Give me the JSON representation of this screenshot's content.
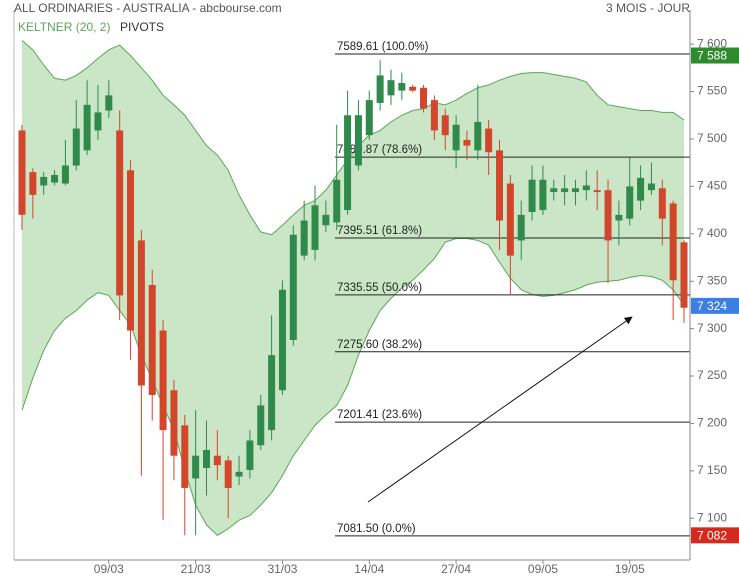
{
  "chart_data": {
    "type": "candlestick",
    "title": "ALL ORDINARIES - AUSTRALIA - abcbourse.com",
    "subtitle": "3 MOIS - JOUR",
    "categories": [
      null,
      null,
      null,
      null,
      null,
      null,
      null,
      null,
      "09/03",
      null,
      null,
      null,
      null,
      null,
      null,
      null,
      "21/03",
      null,
      null,
      null,
      null,
      null,
      null,
      null,
      "31/03",
      null,
      null,
      null,
      null,
      null,
      null,
      null,
      "14/04",
      null,
      null,
      null,
      null,
      null,
      null,
      null,
      "27/04",
      null,
      null,
      null,
      null,
      null,
      null,
      null,
      "09/05",
      null,
      null,
      null,
      null,
      null,
      null,
      null,
      "19/05",
      null,
      null,
      null,
      null,
      null
    ],
    "open": [
      7509,
      7465,
      7451,
      7454,
      7453,
      7472,
      7488,
      7509,
      7530,
      7509,
      7467,
      7393,
      7346,
      7298,
      7235,
      7198,
      7142,
      7153,
      7166,
      7161,
      7144,
      7151,
      7177,
      7193,
      7235,
      7288,
      7377,
      7383,
      7409,
      7412,
      7425,
      7472,
      7504,
      7538,
      7546,
      7551,
      7555,
      7554,
      7541,
      7525,
      7488,
      7499,
      7488,
      7511,
      7488,
      7453,
      7393,
      7423,
      7425,
      7444,
      7444,
      7444,
      7446,
      7446,
      7446,
      7414,
      7416,
      7435,
      7446,
      7448,
      7432,
      7391
    ],
    "high": [
      7515,
      7469,
      7465,
      7467,
      7499,
      7541,
      7562,
      7557,
      7562,
      7530,
      7478,
      7404,
      7362,
      7309,
      7246,
      7209,
      7214,
      7203,
      7193,
      7166,
      7166,
      7193,
      7230,
      7314,
      7351,
      7409,
      7435,
      7451,
      7435,
      7515,
      7551,
      7541,
      7551,
      7583,
      7573,
      7570,
      7557,
      7557,
      7546,
      7532,
      7525,
      7509,
      7557,
      7520,
      7499,
      7462,
      7435,
      7472,
      7472,
      7457,
      7462,
      7457,
      7467,
      7467,
      7457,
      7435,
      7480,
      7472,
      7475,
      7457,
      7435,
      7393
    ],
    "low": [
      7404,
      7416,
      7441,
      7451,
      7451,
      7467,
      7483,
      7499,
      7522,
      7309,
      7267,
      7145,
      7203,
      7098,
      7140,
      7082,
      7082,
      7124,
      7140,
      7100,
      7135,
      7142,
      7172,
      7182,
      7230,
      7282,
      7372,
      7372,
      7402,
      7404,
      7420,
      7467,
      7499,
      7530,
      7536,
      7541,
      7549,
      7528,
      7499,
      7488,
      7469,
      7478,
      7478,
      7462,
      7383,
      7335,
      7372,
      7414,
      7420,
      7435,
      7430,
      7430,
      7435,
      7425,
      7348,
      7388,
      7409,
      7425,
      7441,
      7388,
      7309,
      7306
    ],
    "close": [
      7420,
      7441,
      7460,
      7462,
      7472,
      7511,
      7536,
      7528,
      7546,
      7335,
      7298,
      7240,
      7230,
      7193,
      7166,
      7132,
      7166,
      7172,
      7156,
      7132,
      7149,
      7182,
      7219,
      7272,
      7341,
      7399,
      7414,
      7430,
      7420,
      7457,
      7525,
      7525,
      7541,
      7567,
      7562,
      7559,
      7551,
      7532,
      7509,
      7504,
      7515,
      7493,
      7518,
      7486,
      7414,
      7377,
      7420,
      7457,
      7457,
      7448,
      7448,
      7448,
      7451,
      7444,
      7393,
      7420,
      7450,
      7459,
      7453,
      7416,
      7351,
      7322
    ],
    "up_color": "#2f8a4c",
    "down_color": "#d2462b",
    "overlay": {
      "name": "KELTNER (20, 2)",
      "color": "#5aa65a",
      "fill": "#c8e5c4",
      "upper": [
        7604,
        7594,
        7578,
        7564,
        7562,
        7567,
        7575,
        7585,
        7594,
        7599,
        7588,
        7575,
        7562,
        7546,
        7536,
        7525,
        7509,
        7493,
        7483,
        7467,
        7441,
        7420,
        7402,
        7399,
        7409,
        7420,
        7430,
        7435,
        7446,
        7462,
        7478,
        7493,
        7504,
        7509,
        7518,
        7525,
        7530,
        7532,
        7538,
        7536,
        7541,
        7548,
        7554,
        7557,
        7562,
        7566,
        7569,
        7570,
        7570,
        7568,
        7566,
        7564,
        7560,
        7546,
        7536,
        7534,
        7532,
        7530,
        7530,
        7528,
        7528,
        7520
      ],
      "lower": [
        7214,
        7248,
        7277,
        7298,
        7311,
        7319,
        7330,
        7338,
        7335,
        7319,
        7304,
        7272,
        7246,
        7219,
        7193,
        7151,
        7114,
        7093,
        7082,
        7089,
        7098,
        7103,
        7114,
        7127,
        7145,
        7166,
        7182,
        7198,
        7209,
        7219,
        7240,
        7272,
        7298,
        7319,
        7332,
        7343,
        7351,
        7362,
        7374,
        7391,
        7395,
        7395,
        7393,
        7388,
        7370,
        7353,
        7341,
        7336,
        7334,
        7335,
        7338,
        7341,
        7346,
        7349,
        7350,
        7351,
        7354,
        7356,
        7355,
        7351,
        7341,
        7325
      ]
    },
    "legend_extra": "PIVOTS",
    "level_color": "#222222",
    "levels": [
      {
        "value": 7589.61,
        "label": "7589.61 (100.0%)"
      },
      {
        "value": 7480.87,
        "label": "7480.87 (78.6%)"
      },
      {
        "value": 7395.51,
        "label": "7395.51 (61.8%)"
      },
      {
        "value": 7335.55,
        "label": "7335.55 (50.0%)"
      },
      {
        "value": 7275.6,
        "label": "7275.60 (38.2%)"
      },
      {
        "value": 7201.41,
        "label": "7201.41 (23.6%)"
      },
      {
        "value": 7081.5,
        "label": "7081.50 (0.0%)"
      }
    ],
    "price_badges": [
      {
        "value": 7588,
        "label": "7 588",
        "color": "#2e8b2e"
      },
      {
        "value": 7324,
        "label": "7 324",
        "color": "#3d7fe0"
      },
      {
        "value": 7082,
        "label": "7 082",
        "color": "#d42a1e"
      }
    ],
    "ylim": [
      7056,
      7636
    ],
    "yticks": [
      {
        "value": 7100,
        "label": "7 100"
      },
      {
        "value": 7150,
        "label": "7 150"
      },
      {
        "value": 7200,
        "label": "7 200"
      },
      {
        "value": 7250,
        "label": "7 250"
      },
      {
        "value": 7300,
        "label": "7 300"
      },
      {
        "value": 7350,
        "label": "7 350"
      },
      {
        "value": 7400,
        "label": "7 400"
      },
      {
        "value": 7450,
        "label": "7 450"
      },
      {
        "value": 7500,
        "label": "7 500"
      },
      {
        "value": 7550,
        "label": "7 550"
      },
      {
        "value": 7600,
        "label": "7 600"
      }
    ]
  }
}
